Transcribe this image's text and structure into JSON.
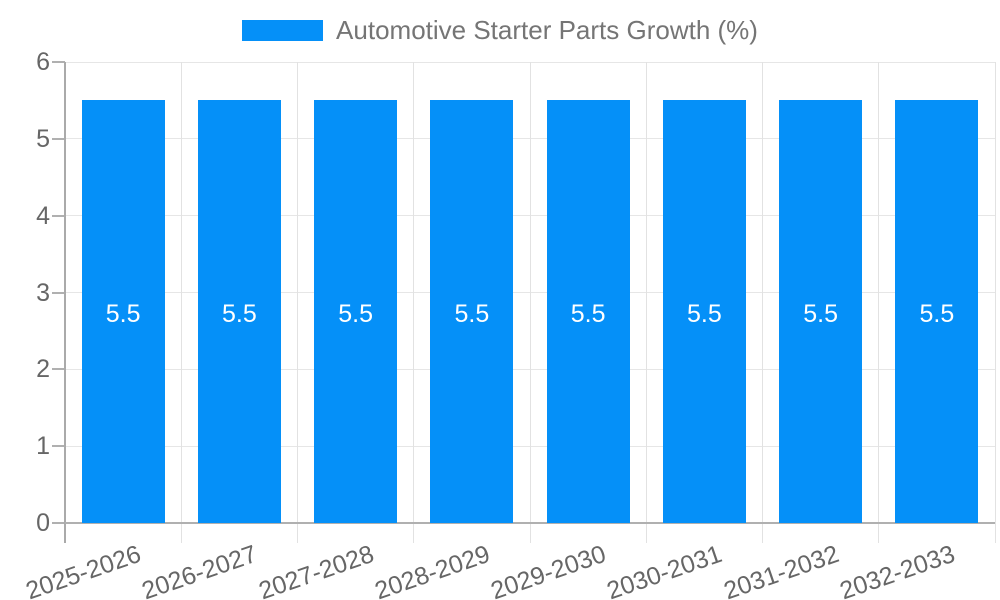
{
  "legend": {
    "label": "Automotive Starter Parts Growth (%)"
  },
  "chart_data": {
    "type": "bar",
    "title": "Automotive Starter Parts Growth (%)",
    "categories": [
      "2025-2026",
      "2026-2027",
      "2027-2028",
      "2028-2029",
      "2029-2030",
      "2030-2031",
      "2031-2032",
      "2032-2033"
    ],
    "series": [
      {
        "name": "Automotive Starter Parts Growth (%)",
        "values": [
          5.5,
          5.5,
          5.5,
          5.5,
          5.5,
          5.5,
          5.5,
          5.5
        ]
      }
    ],
    "value_labels": [
      "5.5",
      "5.5",
      "5.5",
      "5.5",
      "5.5",
      "5.5",
      "5.5",
      "5.5"
    ],
    "xlabel": "",
    "ylabel": "",
    "ylim": [
      0,
      6
    ],
    "yticks": [
      0,
      1,
      2,
      3,
      4,
      5,
      6
    ],
    "grid": true,
    "legend_position": "top"
  },
  "colors": {
    "bar": "#0590f8",
    "value_label_text": "#ffffff",
    "legend_text": "#757575",
    "axis_label_text": "#666666",
    "axis_line": "#aaaaaa",
    "baseline": "#b0b0b0",
    "tick": "#b0b0b0",
    "hgrid": "#e6e6e6",
    "vgrid": "#e2e2e2",
    "background": "#ffffff"
  }
}
